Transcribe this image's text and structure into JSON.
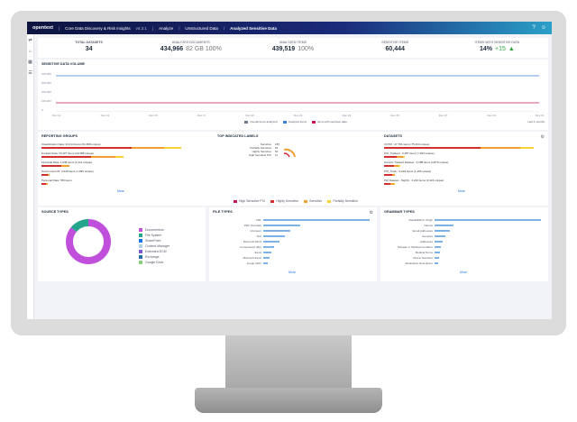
{
  "app": {
    "logo": "opentext",
    "title": "Core Data Discovery & Risk Insights",
    "version": "v4.3.1",
    "breadcrumb": [
      "Analyze",
      "Unstructured Data",
      "Analyzed Sensitive Data"
    ],
    "icons": [
      "help-icon",
      "user-icon"
    ]
  },
  "sidebar": {
    "icons": [
      "collapse-icon",
      "home-icon",
      "grid-icon",
      "list-icon"
    ]
  },
  "kpis": [
    {
      "label": "TOTAL DATASETS",
      "value": "34",
      "sub": "",
      "dropdown": true
    },
    {
      "label": "ANALYZED DOCUMENTS",
      "value": "434,966",
      "sub": "82 GB  100%"
    },
    {
      "label": "ANALYZED ITEMS",
      "value": "439,519",
      "sub": "100%"
    },
    {
      "label": "SENSITIVE ITEMS",
      "value": "60,444",
      "sub": ""
    },
    {
      "label": "ITEMS WITH SENSITIVE DATA",
      "value": "14%",
      "sub": "+15",
      "trend_up": true
    }
  ],
  "trend": {
    "title": "SENSITIVE DATA VOLUME",
    "yticks": [
      "400,000",
      "300,000",
      "200,000",
      "100,000",
      "0"
    ],
    "xticks": [
      "Dec 11",
      "Dec 13",
      "Dec 15",
      "Dec 17",
      "Dec 19",
      "Dec 21",
      "Dec 23",
      "Dec 25",
      "Dec 27",
      "Dec 29",
      "Dec 31"
    ],
    "legend": [
      "Overall items analyzed",
      "Analyzed items",
      "Items with sensitive data"
    ],
    "legend_colors": [
      "#6b7a8f",
      "#3d7fd6",
      "#c2185b"
    ],
    "link": "Last 3 months"
  },
  "reporting_groups": {
    "title": "REPORTING GROUPS",
    "items": [
      {
        "label": "Classification Data: 34,214 items (64,668 unique)",
        "parts": [
          0.55,
          0.2,
          0.1
        ]
      },
      {
        "label": "Contact Data: 15,427 items (20,388 unique)",
        "parts": [
          0.3,
          0.15,
          0.05
        ]
      },
      {
        "label": "Financial Data: 1,948 items (2,111 unique)",
        "parts": [
          0.12,
          0.05,
          0.0
        ]
      },
      {
        "label": "Government ID: 3,048 items (1,095 unique)",
        "parts": [
          0.04,
          0.01,
          0.0
        ]
      },
      {
        "label": "Personal Data: 789 items",
        "parts": [
          0.03,
          0.01,
          0.0
        ]
      }
    ],
    "more": "More"
  },
  "top_labels": {
    "title": "TOP INDICATED LABELS",
    "items": [
      {
        "label": "Sensitive",
        "value": "155"
      },
      {
        "label": "Partially Sensitive",
        "value": "81"
      },
      {
        "label": "Highly Sensitive",
        "value": "52"
      },
      {
        "label": "High Sensitive PCI",
        "value": "11"
      }
    ]
  },
  "datasets": {
    "title": "DATASETS",
    "items": [
      {
        "label": "OCTM : 47,781 items (75,334 unique)",
        "parts": [
          0.6,
          0.25,
          0.08
        ]
      },
      {
        "label": "PCI_Tracked : 3,487 items (7,293 unique)",
        "parts": [
          0.08,
          0.04,
          0.01
        ]
      },
      {
        "label": "Generic Tracked Dataset : 3,388 items (3,870 unique)",
        "parts": [
          0.06,
          0.03,
          0.01
        ]
      },
      {
        "label": "PCI_Track : 3,033 items (1,456 unique)",
        "parts": [
          0.05,
          0.02,
          0.0
        ]
      },
      {
        "label": "PHI Dataset - Nightly : 2,222 items (3,424 unique)",
        "parts": [
          0.04,
          0.02,
          0.01
        ]
      }
    ],
    "more": "More"
  },
  "sensitivity_legend": [
    {
      "label": "High Sensitive PCI",
      "color": "#c2185b"
    },
    {
      "label": "Highly Sensitive",
      "color": "#d32f2f"
    },
    {
      "label": "Sensitive",
      "color": "#f0a030"
    },
    {
      "label": "Partially Sensitive",
      "color": "#f5d23c"
    }
  ],
  "source_types": {
    "title": "SOURCE TYPES",
    "slices": [
      0.86,
      0.14
    ],
    "slice_colors": [
      "#c04fdb",
      "#22a58a"
    ],
    "legend": [
      {
        "label": "Documentum",
        "color": "#c04fdb"
      },
      {
        "label": "File System",
        "color": "#22a58a"
      },
      {
        "label": "SharePoint",
        "color": "#1a73e8"
      },
      {
        "label": "Content Manager",
        "color": "#b0cfe0"
      },
      {
        "label": "Extended ECM",
        "color": "#7a5bd1"
      },
      {
        "label": "Exchange",
        "color": "#2a6fa8"
      },
      {
        "label": "Google Drive",
        "color": "#8bd17c"
      }
    ]
  },
  "file_types": {
    "title": "FILE TYPES",
    "items": [
      {
        "label": "XML",
        "value": 1.0
      },
      {
        "label": "PDF (Acrobat)",
        "value": 0.35
      },
      {
        "label": "Unknown",
        "value": 0.25
      },
      {
        "label": "Text",
        "value": 0.2
      },
      {
        "label": "Microsoft Word",
        "value": 0.15
      },
      {
        "label": "Compressed (Zip)",
        "value": 0.1
      },
      {
        "label": "Excel",
        "value": 0.08
      },
      {
        "label": "Microsoft Excel",
        "value": 0.06
      },
      {
        "label": "Image (GIF)",
        "value": 0.04
      }
    ],
    "more": "More"
  },
  "grammar_types": {
    "title": "GRAMMAR TYPES",
    "items": [
      {
        "label": "Racial/Ethnic Origin",
        "value": 1.0
      },
      {
        "label": "Names",
        "value": 0.18
      },
      {
        "label": "Email Addresses",
        "value": 0.14
      },
      {
        "label": "Genetics",
        "value": 0.1
      },
      {
        "label": "Addresses",
        "value": 0.08
      },
      {
        "label": "Disease or Medical Condition",
        "value": 0.06
      },
      {
        "label": "Medical Terms",
        "value": 0.05
      },
      {
        "label": "Phone Numbers",
        "value": 0.04
      },
      {
        "label": "Medication Description",
        "value": 0.03
      }
    ],
    "more": "More"
  }
}
